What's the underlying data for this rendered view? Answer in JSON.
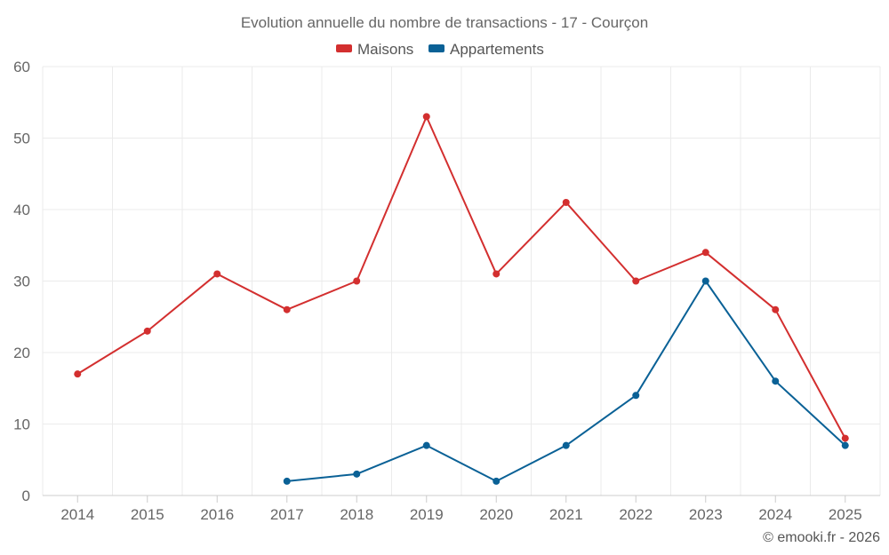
{
  "chart_data": {
    "type": "line",
    "title": "Evolution annuelle du nombre de transactions - 17 - Courçon",
    "categories": [
      "2014",
      "2015",
      "2016",
      "2017",
      "2018",
      "2019",
      "2020",
      "2021",
      "2022",
      "2023",
      "2024",
      "2025"
    ],
    "series": [
      {
        "name": "Maisons",
        "color": "#d32f2f",
        "values": [
          17,
          23,
          31,
          26,
          30,
          53,
          31,
          41,
          30,
          34,
          26,
          8
        ]
      },
      {
        "name": "Appartements",
        "color": "#0a6196",
        "values": [
          null,
          null,
          null,
          2,
          3,
          7,
          2,
          7,
          14,
          30,
          16,
          7
        ]
      }
    ],
    "ylim": [
      0,
      60
    ],
    "yticks": [
      0,
      10,
      20,
      30,
      40,
      50,
      60
    ],
    "xlabel": "",
    "ylabel": "",
    "grid": true,
    "legend_position": "top-center"
  },
  "credit": "© emooki.fr - 2026"
}
